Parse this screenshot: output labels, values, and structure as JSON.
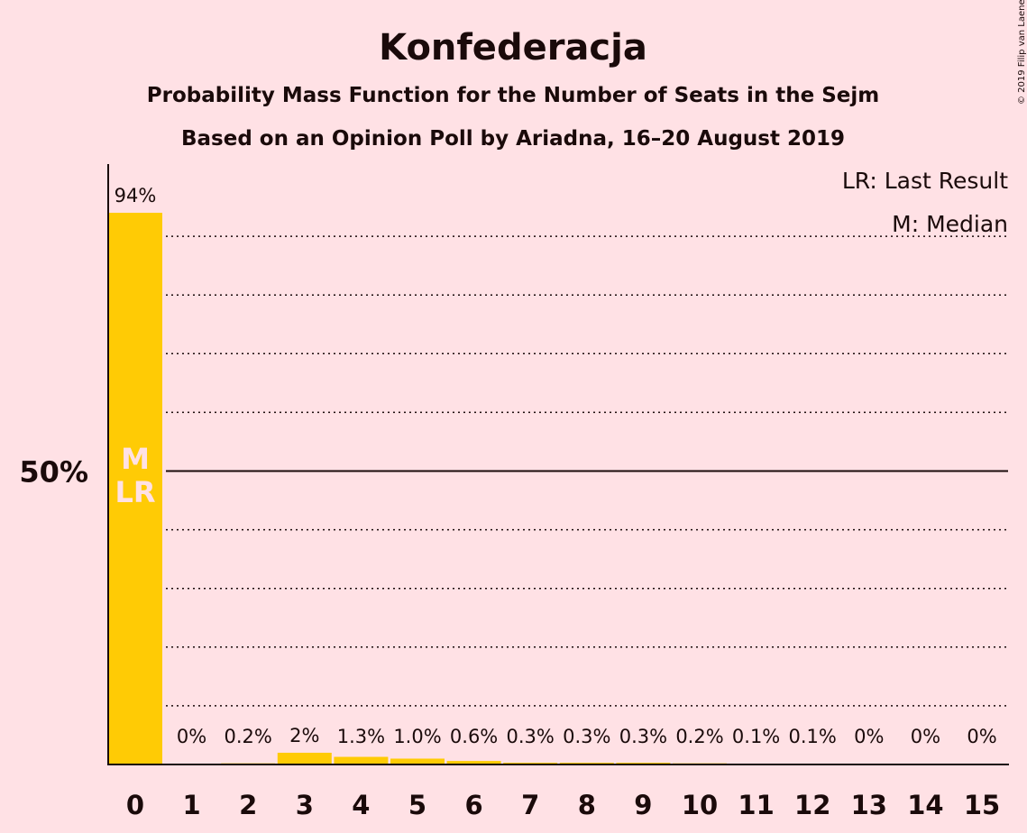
{
  "chart_data": {
    "type": "bar",
    "title": "Konfederacja",
    "subtitle_1": "Probability Mass Function for the Number of Seats in the Sejm",
    "subtitle_2": "Based on an Opinion Poll by Ariadna, 16–20 August 2019",
    "copyright": "© 2019 Filip van Laenen",
    "legend": [
      "LR: Last Result",
      "M: Median"
    ],
    "legend_placement": "top-right",
    "categories": [
      "0",
      "1",
      "2",
      "3",
      "4",
      "5",
      "6",
      "7",
      "8",
      "9",
      "10",
      "11",
      "12",
      "13",
      "14",
      "15"
    ],
    "values": [
      94,
      0,
      0.2,
      2,
      1.3,
      1.0,
      0.6,
      0.3,
      0.3,
      0.3,
      0.2,
      0.1,
      0.1,
      0,
      0,
      0
    ],
    "labels": [
      "94%",
      "0%",
      "0.2%",
      "2%",
      "1.3%",
      "1.0%",
      "0.6%",
      "0.3%",
      "0.3%",
      "0.3%",
      "0.2%",
      "0.1%",
      "0.1%",
      "0%",
      "0%",
      "0%"
    ],
    "bar_markers": [
      {
        "index": 0,
        "lines": [
          "M",
          "LR"
        ]
      }
    ],
    "yticks": [
      {
        "value": 50,
        "label": "50%"
      }
    ],
    "ylim": [
      0,
      100
    ],
    "gridlines": [
      10,
      20,
      30,
      40,
      60,
      70,
      80,
      90
    ],
    "major_gridline": 50,
    "colors": {
      "bar": "#ffcb05",
      "background": "#ffe1e5",
      "text": "#1a0a0a"
    }
  }
}
